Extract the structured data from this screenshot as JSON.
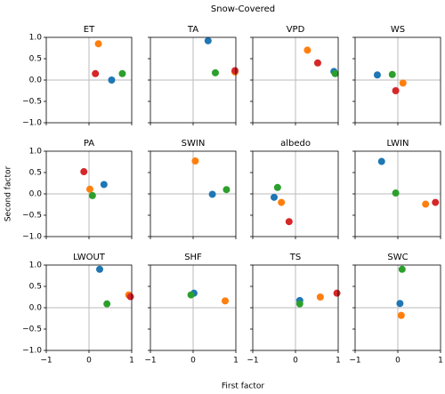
{
  "title": "Snow-Covered",
  "xlabel": "First factor",
  "ylabel": "Second factor",
  "xlim": [
    -1,
    1
  ],
  "ylim": [
    -1,
    1
  ],
  "xticks": [
    {
      "value": -1,
      "label": "−1"
    },
    0,
    1
  ],
  "yticks": [
    {
      "value": 1,
      "label": "1.0"
    },
    {
      "value": 0.5,
      "label": "0.5"
    },
    {
      "value": 0,
      "label": "0.0"
    },
    {
      "value": -0.5,
      "label": "−0.5"
    },
    {
      "value": -1,
      "label": "−1.0"
    }
  ],
  "zero_lines": true,
  "chart_data": [
    {
      "type": "scatter",
      "title": "ET",
      "x": [
        0.53,
        0.22,
        0.78,
        0.15
      ],
      "values": [
        0.0,
        0.85,
        0.15,
        0.15
      ],
      "colors": [
        "#1f77b4",
        "#ff7f0e",
        "#2ca02c",
        "#d62728"
      ]
    },
    {
      "type": "scatter",
      "title": "TA",
      "x": [
        0.35,
        0.98,
        0.52,
        0.98
      ],
      "values": [
        0.92,
        0.19,
        0.17,
        0.22
      ],
      "colors": [
        "#1f77b4",
        "#ff7f0e",
        "#2ca02c",
        "#d62728"
      ]
    },
    {
      "type": "scatter",
      "title": "VPD",
      "x": [
        0.9,
        0.28,
        0.93,
        0.52
      ],
      "values": [
        0.2,
        0.7,
        0.15,
        0.4
      ],
      "colors": [
        "#1f77b4",
        "#ff7f0e",
        "#2ca02c",
        "#d62728"
      ]
    },
    {
      "type": "scatter",
      "title": "WS",
      "x": [
        -0.48,
        0.12,
        -0.13,
        -0.05
      ],
      "values": [
        0.12,
        -0.07,
        0.13,
        -0.25
      ],
      "colors": [
        "#1f77b4",
        "#ff7f0e",
        "#2ca02c",
        "#d62728"
      ]
    },
    {
      "type": "scatter",
      "title": "PA",
      "x": [
        0.35,
        0.02,
        0.08,
        -0.12
      ],
      "values": [
        0.22,
        0.11,
        -0.04,
        0.52
      ],
      "colors": [
        "#1f77b4",
        "#ff7f0e",
        "#2ca02c",
        "#d62728"
      ]
    },
    {
      "type": "scatter",
      "title": "SWIN",
      "x": [
        0.45,
        0.05,
        0.78
      ],
      "values": [
        -0.01,
        0.77,
        0.1
      ],
      "colors": [
        "#1f77b4",
        "#ff7f0e",
        "#2ca02c"
      ]
    },
    {
      "type": "scatter",
      "title": "albedo",
      "x": [
        -0.5,
        -0.33,
        -0.42,
        -0.15
      ],
      "values": [
        -0.08,
        -0.2,
        0.15,
        -0.65
      ],
      "colors": [
        "#1f77b4",
        "#ff7f0e",
        "#2ca02c",
        "#d62728"
      ]
    },
    {
      "type": "scatter",
      "title": "LWIN",
      "x": [
        -0.38,
        0.65,
        -0.05,
        0.88
      ],
      "values": [
        0.76,
        -0.24,
        0.02,
        -0.2
      ],
      "colors": [
        "#1f77b4",
        "#ff7f0e",
        "#2ca02c",
        "#d62728"
      ]
    },
    {
      "type": "scatter",
      "title": "LWOUT",
      "x": [
        0.25,
        0.93,
        0.42,
        0.97
      ],
      "values": [
        0.9,
        0.3,
        0.09,
        0.26
      ],
      "colors": [
        "#1f77b4",
        "#ff7f0e",
        "#2ca02c",
        "#d62728"
      ]
    },
    {
      "type": "scatter",
      "title": "SHF",
      "x": [
        0.02,
        0.75,
        -0.05
      ],
      "values": [
        0.34,
        0.16,
        0.3
      ],
      "colors": [
        "#1f77b4",
        "#ff7f0e",
        "#2ca02c"
      ]
    },
    {
      "type": "scatter",
      "title": "TS",
      "x": [
        0.1,
        0.58,
        0.1,
        0.97
      ],
      "values": [
        0.17,
        0.25,
        0.09,
        0.34
      ],
      "colors": [
        "#1f77b4",
        "#ff7f0e",
        "#2ca02c",
        "#d62728"
      ]
    },
    {
      "type": "scatter",
      "title": "SWC",
      "x": [
        0.05,
        0.08,
        0.1
      ],
      "values": [
        0.1,
        -0.18,
        0.9
      ],
      "colors": [
        "#1f77b4",
        "#ff7f0e",
        "#2ca02c"
      ]
    }
  ]
}
